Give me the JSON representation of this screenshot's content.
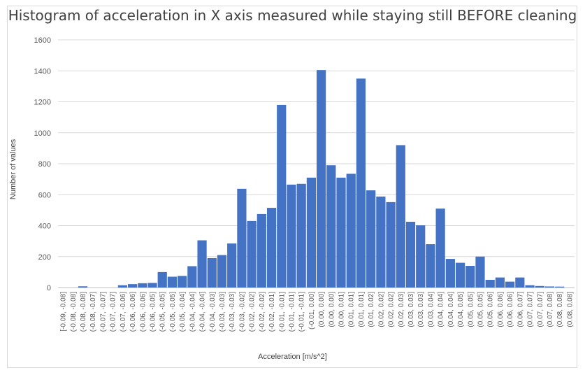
{
  "chart_data": {
    "type": "bar",
    "title": "Histogram of acceleration in X axis measured while staying still BEFORE cleaning",
    "xlabel": "Acceleration [m/s^2]",
    "ylabel": "Number of values",
    "ylim": [
      0,
      1600
    ],
    "yticks": [
      0,
      200,
      400,
      600,
      800,
      1000,
      1200,
      1400,
      1600
    ],
    "grid": true,
    "color": "#4472C4",
    "categories": [
      "[-0.09, -0.08]",
      "(-0.08, -0.08]",
      "(-0.08, -0.08]",
      "(-0.08, -0.07]",
      "(-0.07, -0.07]",
      "(-0.07, -0.07]",
      "(-0.07, -0.06]",
      "(-0.06, -0.06]",
      "(-0.06, -0.06]",
      "(-0.06, -0.05]",
      "(-0.05, -0.05]",
      "(-0.05, -0.05]",
      "(-0.05, -0.04]",
      "(-0.04, -0.04]",
      "(-0.04, -0.04]",
      "(-0.04, -0.03]",
      "(-0.03, -0.03]",
      "(-0.03, -0.03]",
      "(-0.03, -0.02]",
      "(-0.02, -0.02]",
      "(-0.02, -0.02]",
      "(-0.02, -0.01]",
      "(-0.01, -0.01]",
      "(-0.01, -0.01]",
      "(-0.01, -0.01]",
      "(-0.01, 0.00]",
      "(0.00, 0.00]",
      "(0.00, 0.00]",
      "(0.00, 0.01]",
      "(0.01, 0.01]",
      "(0.01, 0.01]",
      "(0.01, 0.02]",
      "(0.02, 0.02]",
      "(0.02, 0.02]",
      "(0.02, 0.03]",
      "(0.03, 0.03]",
      "(0.03, 0.03]",
      "(0.03, 0.04]",
      "(0.04, 0.04]",
      "(0.04, 0.04]",
      "(0.04, 0.05]",
      "(0.05, 0.05]",
      "(0.05, 0.05]",
      "(0.05, 0.06]",
      "(0.06, 0.06]",
      "(0.06, 0.06]",
      "(0.06, 0.07]",
      "(0.07, 0.07]",
      "(0.07, 0.07]",
      "(0.07, 0.08]",
      "(0.08, 0.08]",
      "(0.08, 0.08]"
    ],
    "values": [
      0,
      0,
      8,
      0,
      0,
      0,
      15,
      22,
      28,
      30,
      100,
      70,
      75,
      138,
      305,
      190,
      210,
      285,
      638,
      430,
      475,
      515,
      1180,
      665,
      670,
      710,
      1405,
      790,
      710,
      735,
      1350,
      628,
      588,
      552,
      920,
      425,
      402,
      280,
      510,
      185,
      160,
      140,
      200,
      50,
      65,
      38,
      65,
      15,
      10,
      7,
      6,
      0
    ]
  }
}
